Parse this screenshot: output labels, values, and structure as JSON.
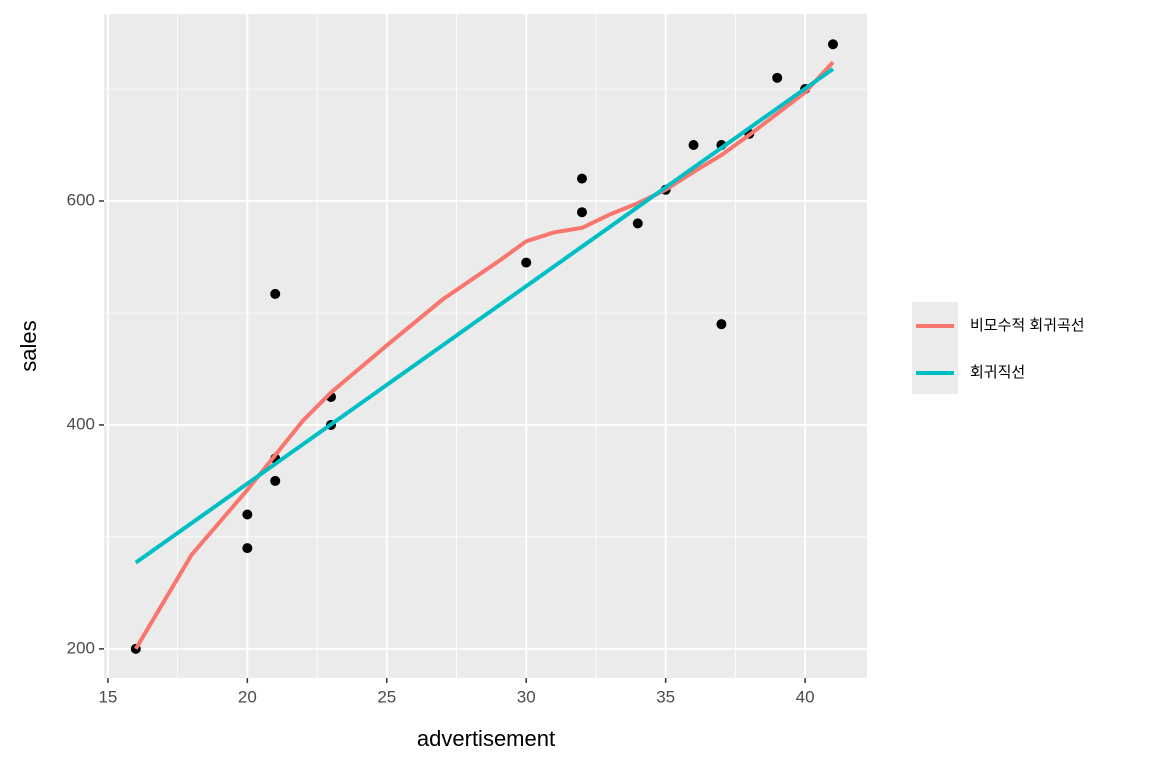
{
  "chart_data": {
    "type": "scatter",
    "xlabel": "advertisement",
    "ylabel": "sales",
    "x": [
      16,
      20,
      20,
      21,
      21,
      21,
      23,
      23,
      30,
      32,
      32,
      34,
      35,
      36,
      37,
      37,
      38,
      39,
      40,
      41
    ],
    "y": [
      200,
      320,
      290,
      517,
      370,
      350,
      425,
      400,
      545,
      620,
      590,
      580,
      610,
      650,
      650,
      490,
      660,
      710,
      700,
      740
    ],
    "point_color": "#000000",
    "series": [
      {
        "name": "비모수적 회귀곡선",
        "color": "#F8766D",
        "x": [
          16,
          18,
          20,
          21,
          22,
          23,
          25,
          27,
          29,
          30,
          31,
          32,
          33,
          34,
          35,
          36,
          37,
          38,
          39,
          40,
          41
        ],
        "values": [
          200,
          284,
          342,
          373,
          404,
          429,
          471,
          512,
          546,
          564,
          572,
          576,
          588,
          598,
          610,
          626,
          641,
          659,
          678,
          697,
          724
        ]
      },
      {
        "name": "회귀직선",
        "color": "#00BFC4",
        "x": [
          16,
          41
        ],
        "values": [
          277,
          718
        ]
      }
    ],
    "xlim": [
      14.86,
      42.22
    ],
    "ylim": [
      174,
      767
    ],
    "xticks": [
      15,
      20,
      25,
      30,
      35,
      40
    ],
    "yticks": [
      200,
      400,
      600
    ],
    "xminor": [
      17.5,
      22.5,
      27.5,
      32.5,
      37.5
    ],
    "yminor": [
      300,
      500,
      700
    ],
    "grid": true,
    "legend": "right"
  }
}
